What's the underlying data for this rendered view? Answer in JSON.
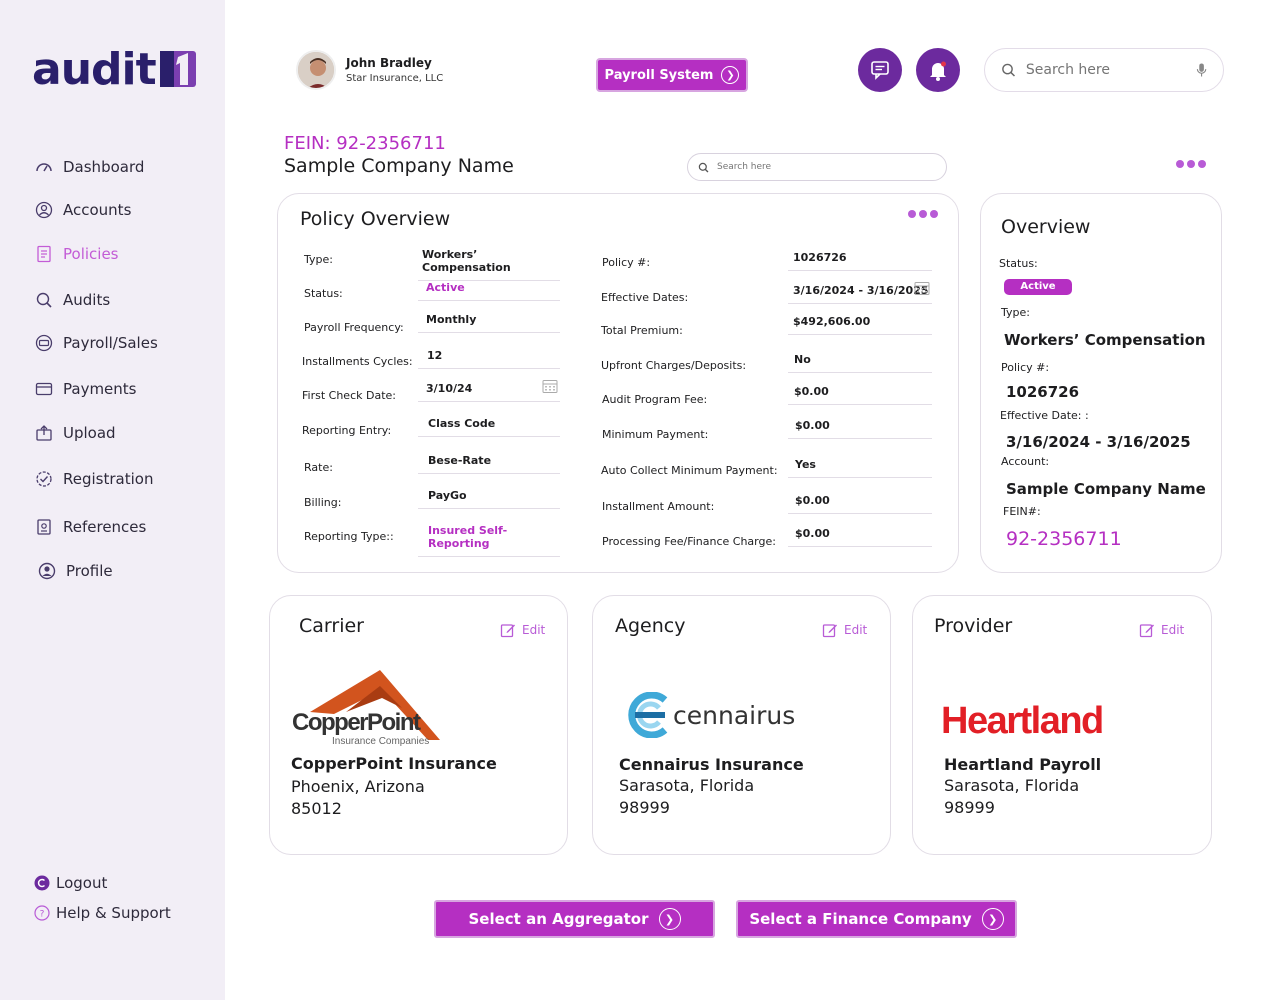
{
  "brand": {
    "logo_text": "audit",
    "accent": "#b52fc2",
    "dark": "#6c2a9e",
    "sidebar_bg": "#f2eef6"
  },
  "sidebar": {
    "items": [
      {
        "label": "Dashboard",
        "icon": "gauge-icon"
      },
      {
        "label": "Accounts",
        "icon": "user-circle-icon"
      },
      {
        "label": "Policies",
        "icon": "document-list-icon",
        "active": true
      },
      {
        "label": "Audits",
        "icon": "search-doc-icon"
      },
      {
        "label": "Payroll/Sales",
        "icon": "cash-icon"
      },
      {
        "label": "Payments",
        "icon": "card-icon"
      },
      {
        "label": "Upload",
        "icon": "upload-icon"
      },
      {
        "label": "Registration",
        "icon": "badge-check-icon"
      },
      {
        "label": "References",
        "icon": "reference-icon"
      },
      {
        "label": "Profile",
        "icon": "profile-icon"
      }
    ],
    "logout": "Logout",
    "help": "Help & Support"
  },
  "header": {
    "user_name": "John Bradley",
    "user_company": "Star Insurance, LLC",
    "payroll_button": "Payroll System",
    "search_placeholder": "Search here"
  },
  "company": {
    "fein": "FEIN: 92-2356711",
    "name": "Sample Company Name",
    "search_placeholder": "Search here"
  },
  "policy_overview": {
    "title": "Policy Overview",
    "left": [
      {
        "label": "Type:",
        "value": "Workers’ Compensation"
      },
      {
        "label": "Status:",
        "value": "Active"
      },
      {
        "label": "Payroll Frequency:",
        "value": "Monthly"
      },
      {
        "label": "Installments Cycles:",
        "value": "12"
      },
      {
        "label": "First Check Date:",
        "value": "3/10/24"
      },
      {
        "label": "Reporting Entry:",
        "value": "Class Code"
      },
      {
        "label": "Rate:",
        "value": "Bese-Rate"
      },
      {
        "label": "Billing:",
        "value": "PayGo"
      },
      {
        "label": "Reporting Type::",
        "value": "Insured Self-Reporting"
      }
    ],
    "right": [
      {
        "label": "Policy #:",
        "value": "1026726"
      },
      {
        "label": "Effective Dates:",
        "value": "3/16/2024 - 3/16/2025"
      },
      {
        "label": "Total Premium:",
        "value": "$492,606.00"
      },
      {
        "label": "Upfront Charges/Deposits:",
        "value": "No"
      },
      {
        "label": "Audit Program Fee:",
        "value": "$0.00"
      },
      {
        "label": "Minimum Payment:",
        "value": "$0.00"
      },
      {
        "label": "Auto Collect Minimum Payment:",
        "value": "Yes"
      },
      {
        "label": "Installment Amount:",
        "value": "$0.00"
      },
      {
        "label": "Processing Fee/Finance Charge:",
        "value": "$0.00"
      }
    ]
  },
  "overview": {
    "title": "Overview",
    "status_label": "Status:",
    "status_value": "Active",
    "type_label": "Type:",
    "type_value": "Workers’ Compensation",
    "policy_label": "Policy #:",
    "policy_value": "1026726",
    "effective_label": "Effective Date: :",
    "effective_value": "3/16/2024 - 3/16/2025",
    "account_label": "Account:",
    "account_value": "Sample Company Name",
    "fein_label": "FEIN#:",
    "fein_value": "92-2356711"
  },
  "carrier": {
    "title": "Carrier",
    "edit": "Edit",
    "logo_main": "CopperPoint",
    "logo_sub": "Insurance Companies",
    "name": "CopperPoint Insurance",
    "city": "Phoenix, Arizona",
    "zip": "85012"
  },
  "agency": {
    "title": "Agency",
    "edit": "Edit",
    "logo_main": "cennairus",
    "name": "Cennairus Insurance",
    "city": "Sarasota, Florida",
    "zip": "98999"
  },
  "provider": {
    "title": "Provider",
    "edit": "Edit",
    "logo_main": "Heartland",
    "name": "Heartland Payroll",
    "city": "Sarasota, Florida",
    "zip": "98999"
  },
  "actions": {
    "aggregator": "Select an Aggregator",
    "finance": "Select a Finance Company"
  }
}
